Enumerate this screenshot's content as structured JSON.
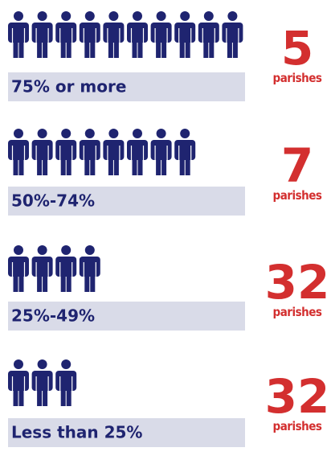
{
  "rows": [
    {
      "icons": 10,
      "label": "75% or more",
      "count": 5,
      "unit": "parishes"
    },
    {
      "icons": 8,
      "label": "50%-74%",
      "count": 7,
      "unit": "parishes"
    },
    {
      "icons": 4,
      "label": "25%-49%",
      "count": 32,
      "unit": "parishes"
    },
    {
      "icons": 3,
      "label": "Less than 25%",
      "count": 32,
      "unit": "parishes"
    }
  ]
}
